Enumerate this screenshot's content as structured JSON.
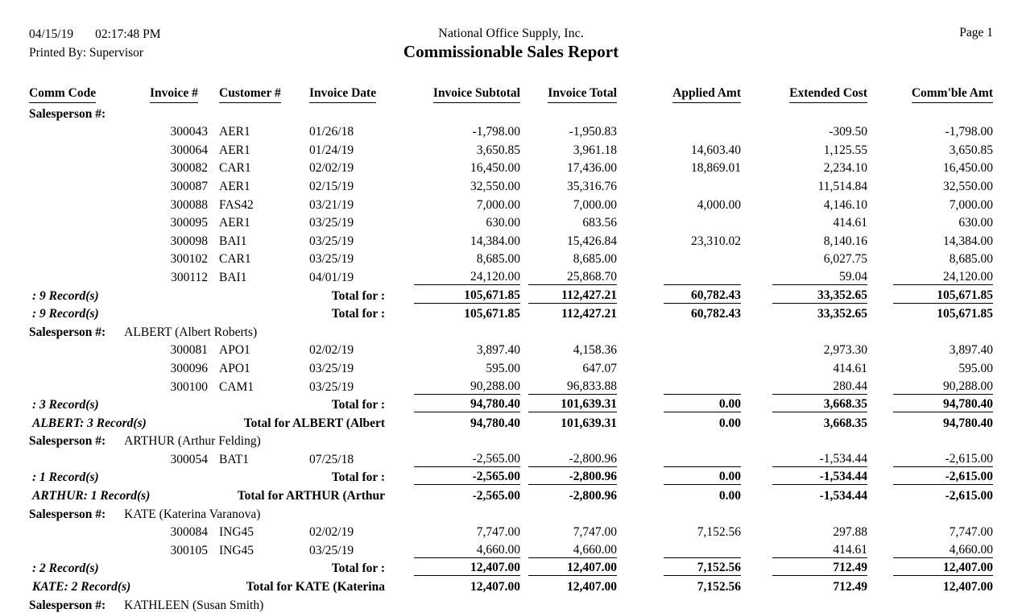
{
  "header": {
    "date": "04/15/19",
    "time": "02:17:48 PM",
    "printed_by": "Printed By: Supervisor",
    "company": "National Office Supply, Inc.",
    "title": "Commissionable Sales Report",
    "page": "Page 1"
  },
  "report": {
    "columns": [
      "Comm Code",
      "Invoice #",
      "Customer #",
      "Invoice Date",
      "Invoice Subtotal",
      "Invoice Total",
      "Applied Amt",
      "Extended Cost",
      "Comm'ble Amt"
    ],
    "groups": [
      {
        "salesperson_label": "Salesperson #:",
        "salesperson_name": "",
        "rows": [
          {
            "invoice": "300043",
            "customer": "AER1",
            "date": "01/26/18",
            "subtotal": "-1,798.00",
            "total": "-1,950.83",
            "applied": "",
            "extended": "-309.50",
            "commble": "-1,798.00"
          },
          {
            "invoice": "300064",
            "customer": "AER1",
            "date": "01/24/19",
            "subtotal": "3,650.85",
            "total": "3,961.18",
            "applied": "14,603.40",
            "extended": "1,125.55",
            "commble": "3,650.85"
          },
          {
            "invoice": "300082",
            "customer": "CAR1",
            "date": "02/02/19",
            "subtotal": "16,450.00",
            "total": "17,436.00",
            "applied": "18,869.01",
            "extended": "2,234.10",
            "commble": "16,450.00"
          },
          {
            "invoice": "300087",
            "customer": "AER1",
            "date": "02/15/19",
            "subtotal": "32,550.00",
            "total": "35,316.76",
            "applied": "",
            "extended": "11,514.84",
            "commble": "32,550.00"
          },
          {
            "invoice": "300088",
            "customer": "FAS42",
            "date": "03/21/19",
            "subtotal": "7,000.00",
            "total": "7,000.00",
            "applied": "4,000.00",
            "extended": "4,146.10",
            "commble": "7,000.00"
          },
          {
            "invoice": "300095",
            "customer": "AER1",
            "date": "03/25/19",
            "subtotal": "630.00",
            "total": "683.56",
            "applied": "",
            "extended": "414.61",
            "commble": "630.00"
          },
          {
            "invoice": "300098",
            "customer": "BAI1",
            "date": "03/25/19",
            "subtotal": "14,384.00",
            "total": "15,426.84",
            "applied": "23,310.02",
            "extended": "8,140.16",
            "commble": "14,384.00"
          },
          {
            "invoice": "300102",
            "customer": "CAR1",
            "date": "03/25/19",
            "subtotal": "8,685.00",
            "total": "8,685.00",
            "applied": "",
            "extended": "6,027.75",
            "commble": "8,685.00"
          },
          {
            "invoice": "300112",
            "customer": "BAI1",
            "date": "04/01/19",
            "subtotal": "24,120.00",
            "total": "25,868.70",
            "applied": "",
            "extended": "59.04",
            "commble": "24,120.00"
          }
        ],
        "subtotal": {
          "records": ": 9 Record(s)",
          "label": "Total for  :",
          "values": [
            "105,671.85",
            "112,427.21",
            "60,782.43",
            "33,352.65",
            "105,671.85"
          ]
        },
        "group_total": {
          "records": ": 9 Record(s)",
          "label": "Total for  :",
          "values": [
            "105,671.85",
            "112,427.21",
            "60,782.43",
            "33,352.65",
            "105,671.85"
          ]
        }
      },
      {
        "salesperson_label": "Salesperson #:",
        "salesperson_name": "ALBERT (Albert Roberts)",
        "rows": [
          {
            "invoice": "300081",
            "customer": "APO1",
            "date": "02/02/19",
            "subtotal": "3,897.40",
            "total": "4,158.36",
            "applied": "",
            "extended": "2,973.30",
            "commble": "3,897.40"
          },
          {
            "invoice": "300096",
            "customer": "APO1",
            "date": "03/25/19",
            "subtotal": "595.00",
            "total": "647.07",
            "applied": "",
            "extended": "414.61",
            "commble": "595.00"
          },
          {
            "invoice": "300100",
            "customer": "CAM1",
            "date": "03/25/19",
            "subtotal": "90,288.00",
            "total": "96,833.88",
            "applied": "",
            "extended": "280.44",
            "commble": "90,288.00"
          }
        ],
        "subtotal": {
          "records": ": 3 Record(s)",
          "label": "Total for  :",
          "values": [
            "94,780.40",
            "101,639.31",
            "0.00",
            "3,668.35",
            "94,780.40"
          ]
        },
        "group_total": {
          "records": "ALBERT: 3 Record(s)",
          "label": "Total for ALBERT (Albert",
          "values": [
            "94,780.40",
            "101,639.31",
            "0.00",
            "3,668.35",
            "94,780.40"
          ]
        }
      },
      {
        "salesperson_label": "Salesperson #:",
        "salesperson_name": "ARTHUR (Arthur Felding)",
        "rows": [
          {
            "invoice": "300054",
            "customer": "BAT1",
            "date": "07/25/18",
            "subtotal": "-2,565.00",
            "total": "-2,800.96",
            "applied": "",
            "extended": "-1,534.44",
            "commble": "-2,615.00"
          }
        ],
        "subtotal": {
          "records": ": 1 Record(s)",
          "label": "Total for  :",
          "values": [
            "-2,565.00",
            "-2,800.96",
            "0.00",
            "-1,534.44",
            "-2,615.00"
          ]
        },
        "group_total": {
          "records": "ARTHUR: 1 Record(s)",
          "label": "Total for ARTHUR (Arthur",
          "values": [
            "-2,565.00",
            "-2,800.96",
            "0.00",
            "-1,534.44",
            "-2,615.00"
          ]
        }
      },
      {
        "salesperson_label": "Salesperson #:",
        "salesperson_name": "KATE (Katerina Varanova)",
        "rows": [
          {
            "invoice": "300084",
            "customer": "ING45",
            "date": "02/02/19",
            "subtotal": "7,747.00",
            "total": "7,747.00",
            "applied": "7,152.56",
            "extended": "297.88",
            "commble": "7,747.00"
          },
          {
            "invoice": "300105",
            "customer": "ING45",
            "date": "03/25/19",
            "subtotal": "4,660.00",
            "total": "4,660.00",
            "applied": "",
            "extended": "414.61",
            "commble": "4,660.00"
          }
        ],
        "subtotal": {
          "records": ": 2 Record(s)",
          "label": "Total for  :",
          "values": [
            "12,407.00",
            "12,407.00",
            "7,152.56",
            "712.49",
            "12,407.00"
          ]
        },
        "group_total": {
          "records": "KATE: 2 Record(s)",
          "label": "Total for KATE (Katerina",
          "values": [
            "12,407.00",
            "12,407.00",
            "7,152.56",
            "712.49",
            "12,407.00"
          ]
        }
      }
    ],
    "partial_next_group": {
      "salesperson_label": "Salesperson #:",
      "salesperson_name": "KATHLEEN (Susan Smith)"
    }
  }
}
